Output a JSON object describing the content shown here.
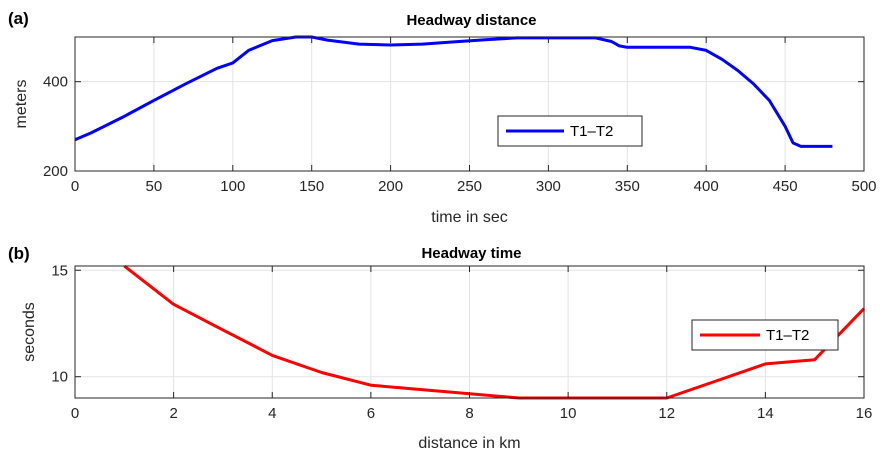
{
  "chart_data": [
    {
      "panel_label": "(a)",
      "type": "line",
      "title": "Headway distance",
      "xlabel": "time in sec",
      "ylabel": "meters",
      "xlim": [
        0,
        500
      ],
      "ylim": [
        200,
        500
      ],
      "xticks": [
        0,
        50,
        100,
        150,
        200,
        250,
        300,
        350,
        400,
        450,
        500
      ],
      "yticks": [
        200,
        400
      ],
      "grid": true,
      "legend": "center-right",
      "series": [
        {
          "name": "T1–T2",
          "color": "#0000ff",
          "x": [
            0,
            10,
            30,
            50,
            70,
            90,
            100,
            110,
            125,
            140,
            150,
            160,
            180,
            200,
            220,
            240,
            260,
            280,
            300,
            320,
            330,
            340,
            345,
            350,
            370,
            390,
            400,
            410,
            420,
            430,
            440,
            450,
            455,
            460,
            470,
            480
          ],
          "y": [
            270,
            285,
            320,
            358,
            395,
            430,
            442,
            470,
            492,
            500,
            500,
            493,
            484,
            482,
            484,
            489,
            494,
            498,
            498,
            498,
            498,
            490,
            480,
            477,
            477,
            477,
            470,
            450,
            425,
            395,
            358,
            300,
            263,
            255,
            255,
            255
          ]
        }
      ]
    },
    {
      "panel_label": "(b)",
      "type": "line",
      "title": "Headway time",
      "xlabel": "distance in km",
      "ylabel": "seconds",
      "xlim": [
        0,
        16
      ],
      "ylim": [
        9,
        15.2
      ],
      "xticks": [
        0,
        2,
        4,
        6,
        8,
        10,
        12,
        14,
        16
      ],
      "yticks": [
        10,
        15
      ],
      "grid": true,
      "legend": "center-right",
      "series": [
        {
          "name": "T1–T2",
          "color": "#ff0000",
          "x": [
            1,
            2,
            3,
            4,
            5,
            6,
            7,
            8,
            9,
            10,
            11,
            12,
            13,
            14,
            15,
            16
          ],
          "y": [
            15.2,
            13.4,
            12.2,
            11.0,
            10.2,
            9.6,
            9.4,
            9.2,
            9.0,
            9.0,
            9.0,
            9.0,
            9.8,
            10.6,
            10.8,
            13.2
          ]
        }
      ]
    }
  ]
}
